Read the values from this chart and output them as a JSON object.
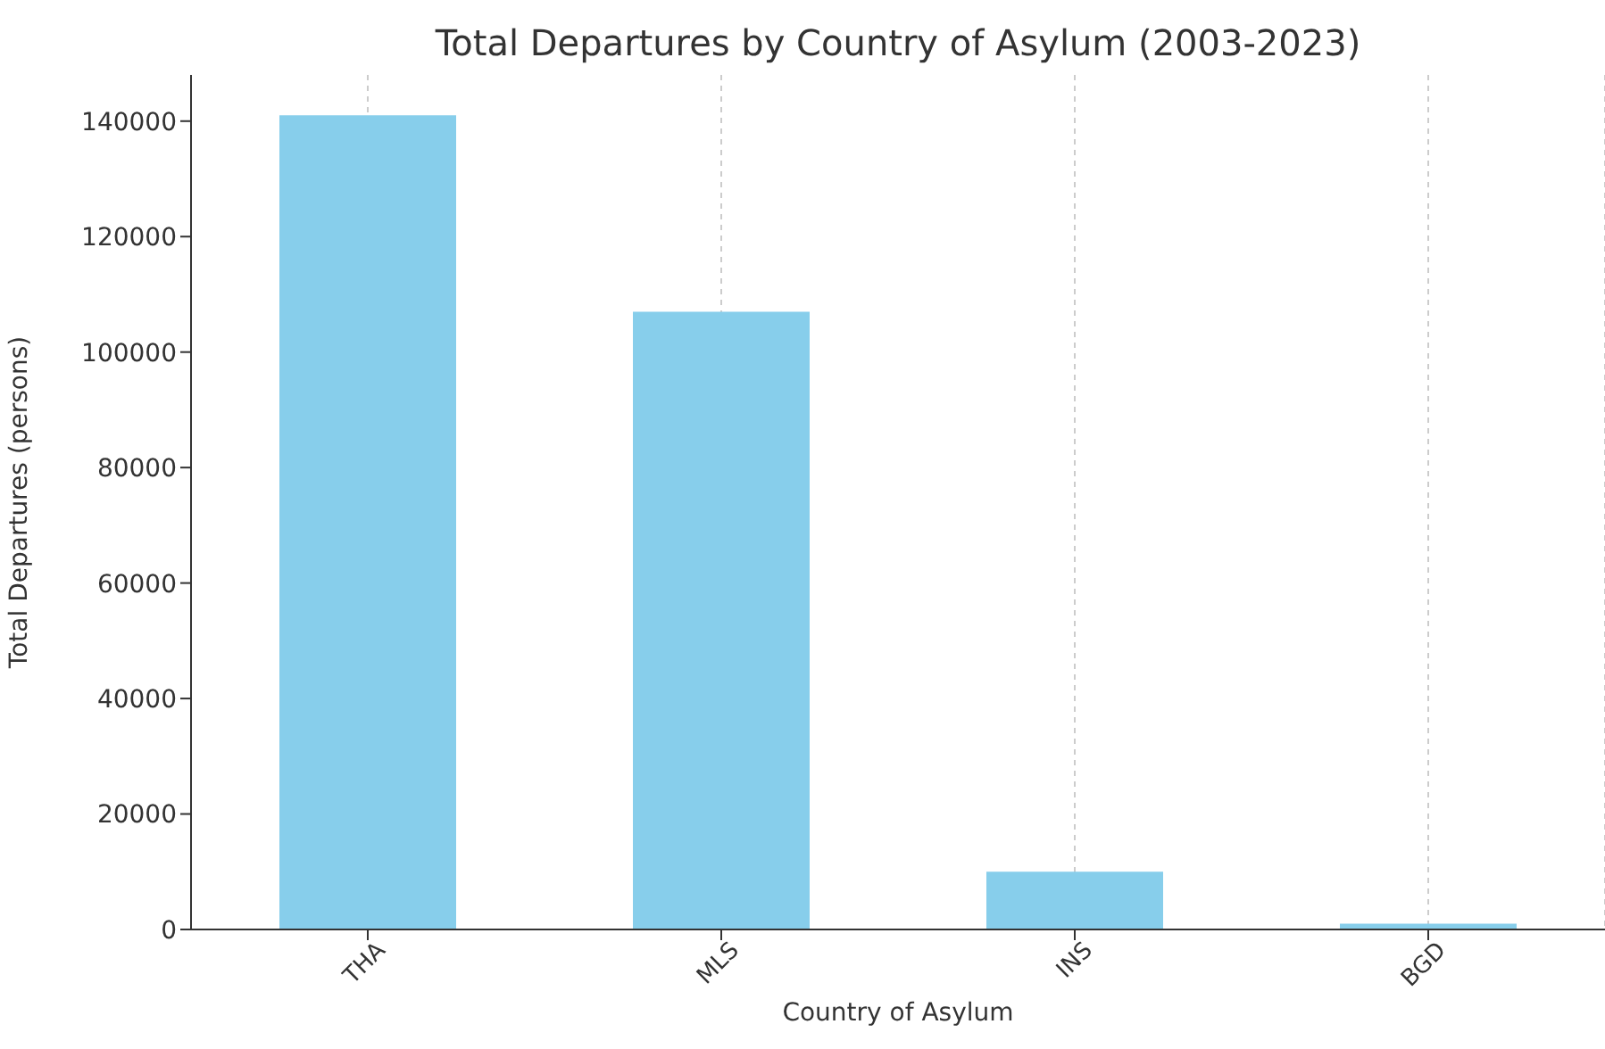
{
  "chart_data": {
    "type": "bar",
    "title": "Total Departures by Country of Asylum (2003-2023)",
    "xlabel": "Country of Asylum",
    "ylabel": "Total Departures (persons)",
    "categories": [
      "THA",
      "MLS",
      "INS",
      "BGD"
    ],
    "values": [
      141000,
      107000,
      10000,
      1000
    ],
    "color": "#87ceeb",
    "ylim": [
      0,
      148000
    ],
    "yticks": [
      0,
      20000,
      40000,
      60000,
      80000,
      100000,
      120000,
      140000
    ],
    "grid": "x",
    "legend": false
  }
}
